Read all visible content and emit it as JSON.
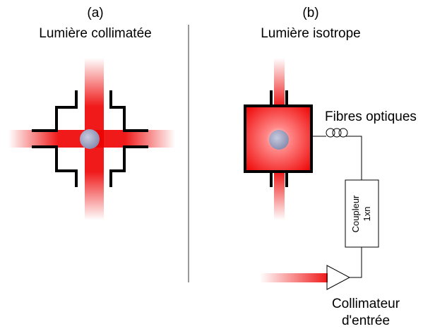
{
  "panel_a": {
    "label": "(a)",
    "title": "Lumière collimatée"
  },
  "panel_b": {
    "label": "(b)",
    "title": "Lumière isotrope",
    "fibers": "Fibres optiques",
    "coupler": {
      "name": "Coupleur",
      "ratio": "1xn"
    },
    "collimator": {
      "line1": "Collimateur",
      "line2": "d'entrée"
    }
  }
}
